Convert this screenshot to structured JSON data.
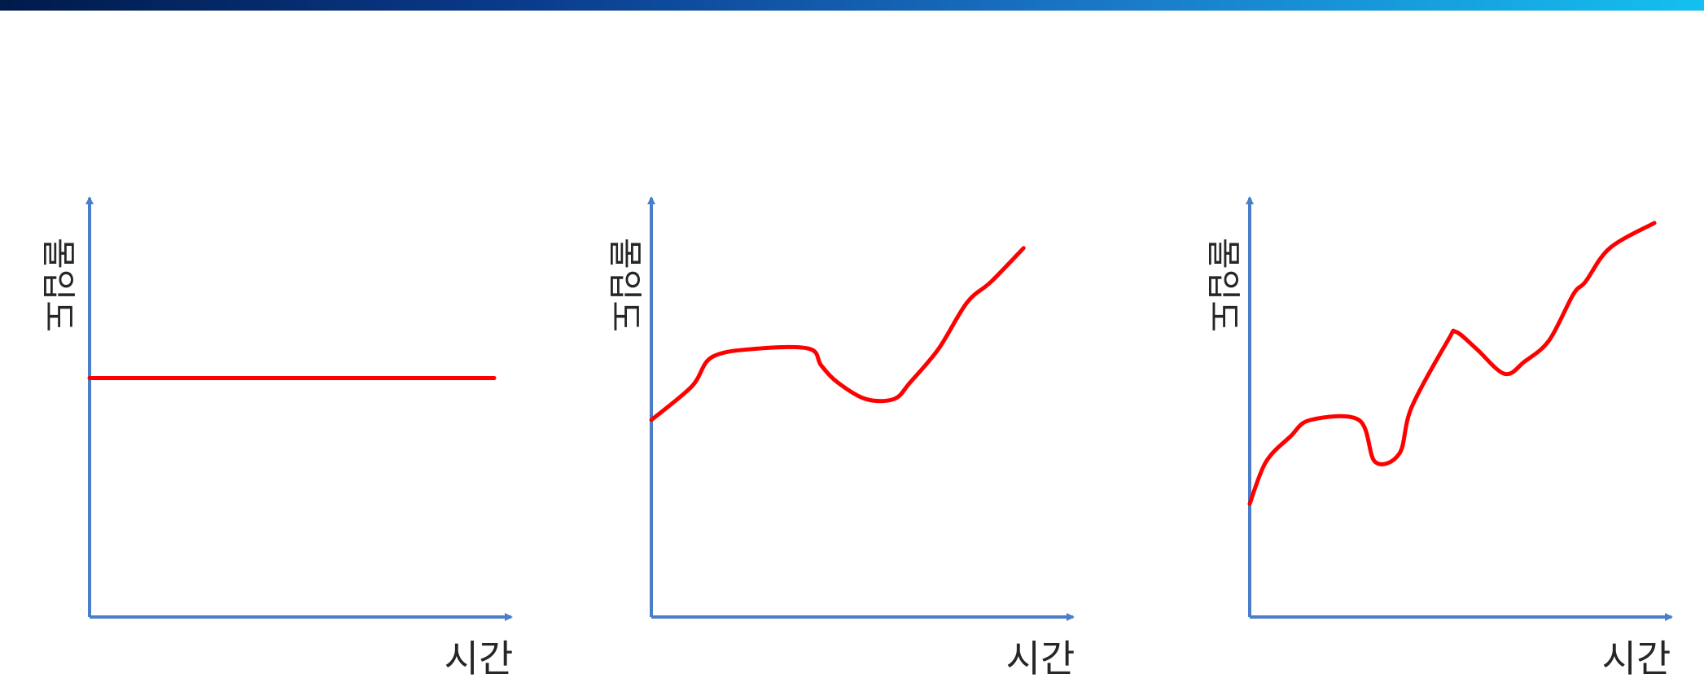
{
  "header": {
    "bar_color_start": "#001a4a",
    "bar_color_end": "#14c0f0"
  },
  "chart_data": [
    {
      "type": "line",
      "xlabel": "시간",
      "ylabel": "몰입도",
      "xlim": [
        0,
        10
      ],
      "ylim": [
        0,
        10
      ],
      "grid": false,
      "axis_color": "#4a7ec8",
      "line_color": "#ff0000",
      "series": [
        {
          "x": [
            0,
            10
          ],
          "y": [
            5.7,
            5.7
          ]
        }
      ]
    },
    {
      "type": "line",
      "xlabel": "시간",
      "ylabel": "몰입도",
      "xlim": [
        0,
        10
      ],
      "ylim": [
        0,
        10
      ],
      "grid": false,
      "axis_color": "#4a7ec8",
      "line_color": "#ff0000",
      "series": [
        {
          "x": [
            0,
            1.0,
            1.5,
            2.6,
            3.9,
            4.2,
            4.6,
            5.3,
            6.0,
            6.4,
            7.1,
            7.8,
            8.4,
            9.2
          ],
          "y": [
            4.7,
            5.5,
            6.2,
            6.4,
            6.4,
            6.0,
            5.6,
            5.2,
            5.2,
            5.6,
            6.4,
            7.5,
            8.0,
            8.8
          ]
        }
      ]
    },
    {
      "type": "line",
      "xlabel": "시간",
      "ylabel": "몰입도",
      "xlim": [
        0,
        10
      ],
      "ylim": [
        0,
        10
      ],
      "grid": false,
      "axis_color": "#4a7ec8",
      "line_color": "#ff0000",
      "series": [
        {
          "x": [
            0,
            0.4,
            1.0,
            1.5,
            2.7,
            3.1,
            3.7,
            4.0,
            4.9,
            5.1,
            5.6,
            6.3,
            6.8,
            7.4,
            8.0,
            8.3,
            8.9,
            10.0
          ],
          "y": [
            2.7,
            3.7,
            4.3,
            4.7,
            4.7,
            3.7,
            3.9,
            5.0,
            6.6,
            6.8,
            6.4,
            5.8,
            6.1,
            6.6,
            7.7,
            8.0,
            8.8,
            9.4
          ]
        }
      ]
    }
  ]
}
